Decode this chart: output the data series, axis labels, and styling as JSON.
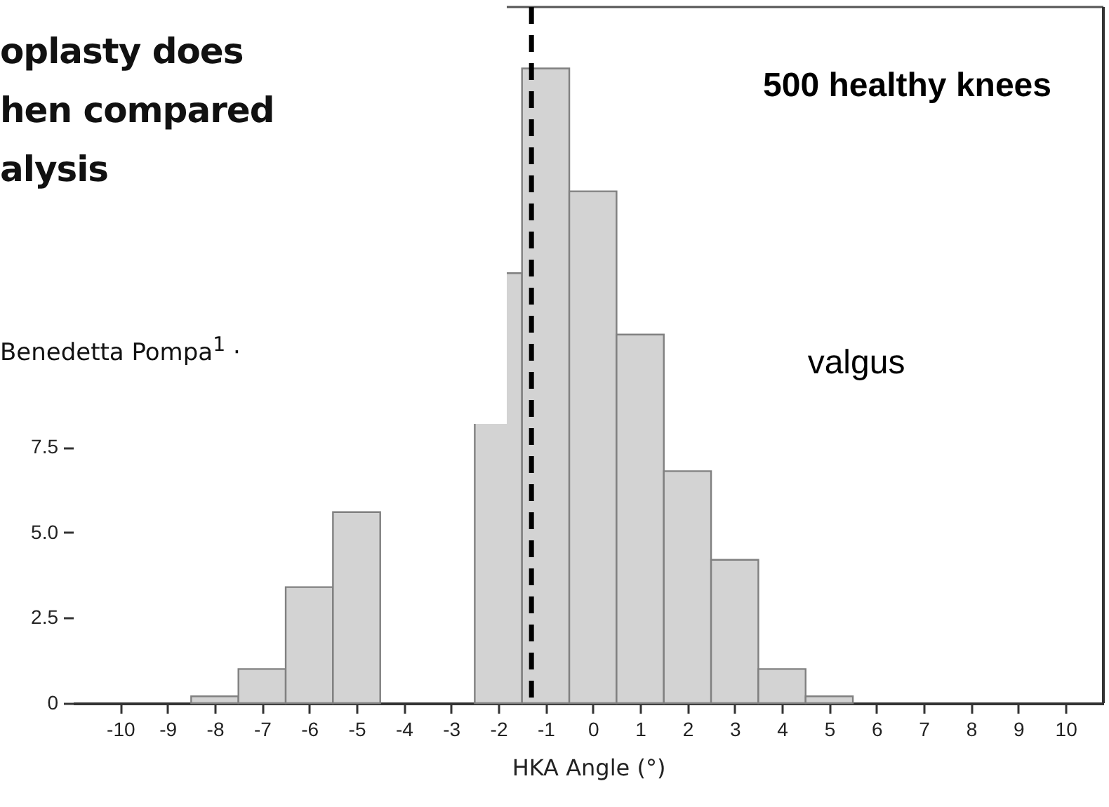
{
  "chart_data": {
    "type": "histogram",
    "title": "500 healthy knees",
    "xlabel": "HKA Angle (°)",
    "bins": [
      -8.5,
      -7.5,
      -6.5,
      -5.5,
      -4.5,
      -3.5,
      -2.5,
      -1.5,
      -0.5,
      0.5,
      1.5,
      2.5,
      3.5,
      4.5,
      5.5
    ],
    "values": [
      0.2,
      1.0,
      3.4,
      5.6,
      null,
      null,
      12.6,
      18.6,
      15.0,
      10.8,
      6.8,
      4.2,
      1.0,
      0.2
    ],
    "color": "#d3d3d3",
    "xlim": [
      -11,
      10.8
    ],
    "xticks": [
      -10,
      -9,
      -8,
      -7,
      -6,
      -5,
      -4,
      -3,
      -2,
      -1,
      0,
      1,
      2,
      3,
      4,
      5,
      6,
      7,
      8,
      9,
      10
    ],
    "ylim": [
      0,
      20.4
    ],
    "yticks": [
      0,
      2.5,
      {
        "value": 5,
        "label": "5.0"
      },
      7.5
    ],
    "ref_lines": [
      {
        "axis": "x",
        "value": -1.3,
        "color": "#000000",
        "line_style": "dashed"
      }
    ],
    "annotations": [
      "valgus",
      "oplasty does",
      "hen compared",
      "alysis",
      "Benedetta Pompa$^{1}$ ·"
    ],
    "grid": false
  }
}
